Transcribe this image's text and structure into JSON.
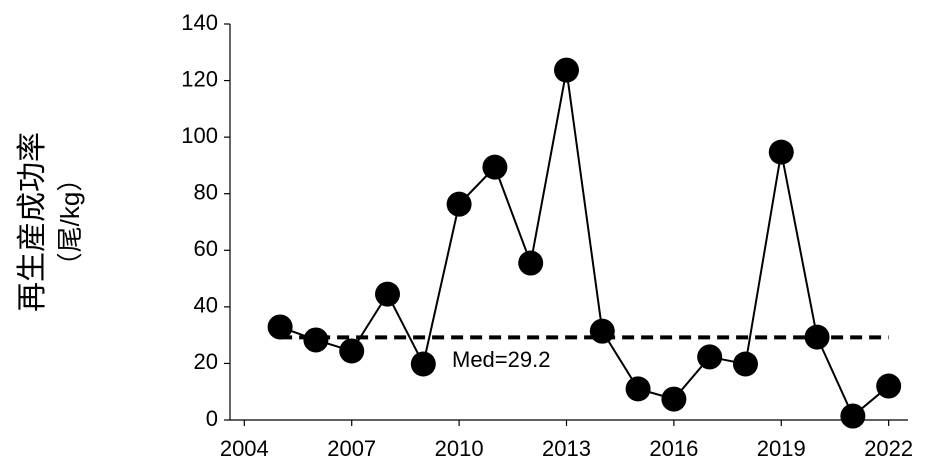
{
  "chart_data": {
    "type": "line",
    "y_label": [
      "再生産成功率",
      "（尾/kg）"
    ],
    "x": [
      2005,
      2006,
      2007,
      2008,
      2009,
      2010,
      2011,
      2012,
      2013,
      2014,
      2015,
      2016,
      2017,
      2018,
      2019,
      2020,
      2021,
      2022
    ],
    "values": [
      32.9,
      28.3,
      24.4,
      44.5,
      19.8,
      76.3,
      89.4,
      55.5,
      123.7,
      31.4,
      11,
      7.4,
      22.3,
      19.8,
      94.7,
      29.3,
      1.4,
      12
    ],
    "color": "#000000",
    "median": 29.2,
    "annotation": "Med=29.2",
    "xlim": [
      2003.6,
      2022.54
    ],
    "xticks": [
      2004,
      2007,
      2010,
      2013,
      2016,
      2019,
      2022
    ],
    "ylim": [
      0,
      140
    ],
    "yticks": [
      0,
      20,
      40,
      60,
      80,
      100,
      120,
      140
    ],
    "grid": false
  }
}
